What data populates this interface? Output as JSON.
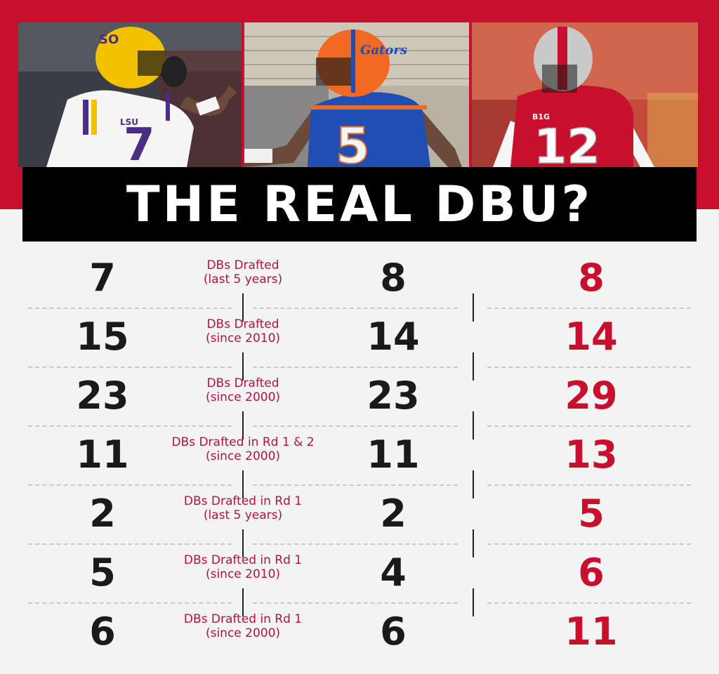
{
  "title": "THE REAL DBU?",
  "photos": [
    {
      "name": "lsu-player",
      "jersey_number": "7",
      "chest_text": "LSU",
      "helmet_text": "SO",
      "color": "#f5f5f5",
      "trim": "#4b2e83",
      "helmet": "#f2c200"
    },
    {
      "name": "florida-player",
      "jersey_number": "5",
      "helmet_text": "Gators",
      "color": "#1f4fb5",
      "trim": "#f26a21",
      "helmet": "#f26a21"
    },
    {
      "name": "ohio-state-player",
      "jersey_number": "12",
      "chest_text": "B1G",
      "color": "#c8102e",
      "trim": "#ffffff",
      "helmet": "#c9c9c9"
    }
  ],
  "rows": [
    {
      "lsu": "7",
      "label_1": "DBs Drafted",
      "label_2": "(last 5 years)",
      "uf": "8",
      "osu": "8"
    },
    {
      "lsu": "15",
      "label_1": "DBs Drafted",
      "label_2": "(since 2010)",
      "uf": "14",
      "osu": "14"
    },
    {
      "lsu": "23",
      "label_1": "DBs Drafted",
      "label_2": "(since 2000)",
      "uf": "23",
      "osu": "29"
    },
    {
      "lsu": "11",
      "label_1": "DBs Drafted in Rd 1 & 2",
      "label_2": "(since 2000)",
      "uf": "11",
      "osu": "13"
    },
    {
      "lsu": "2",
      "label_1": "DBs Drafted in Rd 1",
      "label_2": "(last 5 years)",
      "uf": "2",
      "osu": "5"
    },
    {
      "lsu": "5",
      "label_1": "DBs Drafted in Rd 1",
      "label_2": "(since 2010)",
      "uf": "4",
      "osu": "6"
    },
    {
      "lsu": "6",
      "label_1": "DBs Drafted in Rd 1",
      "label_2": "(since 2000)",
      "uf": "6",
      "osu": "11"
    }
  ],
  "colors": {
    "brand_red": "#c8102e",
    "label_red": "#b5123f",
    "black": "#000000",
    "background": "#f3f3f3"
  }
}
